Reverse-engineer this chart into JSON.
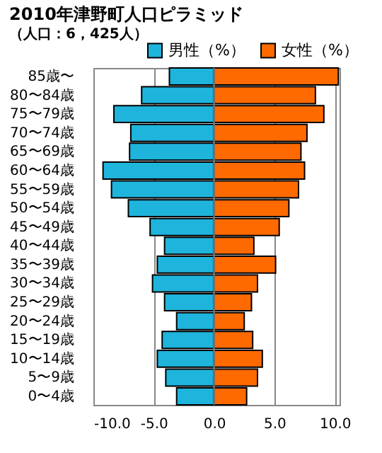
{
  "chart_data": {
    "type": "bar",
    "orientation": "horizontal",
    "stacked": true,
    "title": "2010年津野町人口ピラミッド",
    "subtitle": "（人口：6，425人）",
    "categories": [
      "85歳〜",
      "80〜84歳",
      "75〜79歳",
      "70〜74歳",
      "65〜69歳",
      "60〜64歳",
      "55〜59歳",
      "50〜54歳",
      "45〜49歳",
      "40〜44歳",
      "35〜39歳",
      "30〜34歳",
      "25〜29歳",
      "20〜24歳",
      "15〜19歳",
      "10〜14歳",
      "5〜9歳",
      "0〜4歳"
    ],
    "series": [
      {
        "name": "男性（%）",
        "color": "#1fb4dc",
        "values": [
          -3.7,
          -6.0,
          -8.3,
          -6.9,
          -7.0,
          -9.2,
          -8.5,
          -7.1,
          -5.3,
          -4.1,
          -4.7,
          -5.1,
          -4.1,
          -3.1,
          -4.3,
          -4.7,
          -4.0,
          -3.1
        ]
      },
      {
        "name": "女性（%）",
        "color": "#ff6a00",
        "values": [
          10.3,
          8.4,
          9.1,
          7.7,
          7.2,
          7.5,
          7.0,
          6.2,
          5.4,
          3.3,
          5.1,
          3.6,
          3.1,
          2.5,
          3.2,
          4.0,
          3.6,
          2.7
        ]
      }
    ],
    "xlim": [
      -10,
      10.4
    ],
    "xticks": [
      {
        "value": -10,
        "label": "-10.0"
      },
      {
        "value": -5,
        "label": "-5.0"
      },
      {
        "value": 0,
        "label": "0.0"
      },
      {
        "value": 5,
        "label": "5.0"
      },
      {
        "value": 10,
        "label": "10.0"
      }
    ],
    "grid": "x",
    "legend": "top right"
  }
}
